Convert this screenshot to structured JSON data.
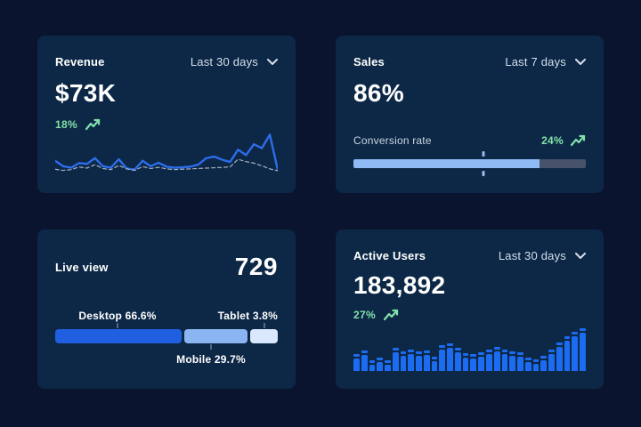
{
  "colors": {
    "page_bg": "#0a142e",
    "card_bg": "#0c2846",
    "text_primary": "#ffffff",
    "text_secondary": "#ccd6e3",
    "accent_green": "#82e0aa",
    "line_blue": "#2d6ceb",
    "line_dashed": "#a7b1c2",
    "bar_blue": "#1c6cf2",
    "progress_fill": "#8fbaf3",
    "progress_track": "#47536b",
    "progress_marker": "#9db9e8",
    "segment_desktop": "#1f5fe0",
    "segment_mobile": "#8ab5f0",
    "segment_tablet": "#d9e8fc",
    "tick": "#52648a"
  },
  "cards": {
    "revenue": {
      "title": "Revenue",
      "period": "Last 30 days",
      "value": "$73K",
      "delta": "18%",
      "trend": "up",
      "chart_data": {
        "type": "line",
        "series": [
          {
            "name": "current",
            "style": "solid",
            "values": [
              32,
              18,
              14,
              26,
              24,
              39,
              18,
              14,
              36,
              12,
              9,
              32,
              18,
              27,
              17,
              14,
              15,
              17,
              22,
              39,
              43,
              35,
              29,
              61,
              47,
              75,
              65,
              100,
              8
            ]
          },
          {
            "name": "previous",
            "style": "dashed",
            "values": [
              10,
              7,
              9,
              16,
              13,
              22,
              12,
              9,
              20,
              11,
              7,
              17,
              12,
              15,
              11,
              9,
              10,
              11,
              12,
              13,
              14,
              15,
              16,
              36,
              30,
              26,
              19,
              11,
              6
            ]
          }
        ],
        "ylim": [
          0,
          100
        ],
        "grid": false,
        "legend": false
      }
    },
    "sales": {
      "title": "Sales",
      "period": "Last 7 days",
      "value": "86%",
      "metric_label": "Conversion rate",
      "delta": "24%",
      "trend": "up",
      "progress": {
        "fill_pct": 80,
        "marker_pct": 56
      }
    },
    "live_view": {
      "title": "Live view",
      "value": "729",
      "chart_data": {
        "type": "stacked-bar",
        "segments": [
          {
            "name": "Desktop",
            "label": "Desktop 66.6%",
            "pct": 66.6,
            "width_pct": 57,
            "color_key": "segment_desktop"
          },
          {
            "name": "Mobile",
            "label": "Mobile 29.7%",
            "pct": 29.7,
            "width_pct": 28.5,
            "color_key": "segment_mobile"
          },
          {
            "name": "Tablet",
            "label": "Tablet 3.8%",
            "pct": 3.8,
            "width_pct": 12.5,
            "color_key": "segment_tablet"
          }
        ],
        "tick_positions_pct": {
          "desktop_top": 28,
          "mobile_bottom": 70,
          "tablet_top": 94
        }
      }
    },
    "active_users": {
      "title": "Active Users",
      "period": "Last 30 days",
      "value": "183,892",
      "delta": "27%",
      "trend": "up",
      "chart_data": {
        "type": "bar",
        "values": [
          40,
          48,
          25,
          31,
          26,
          55,
          46,
          51,
          46,
          48,
          33,
          60,
          64,
          55,
          42,
          40,
          43,
          49,
          56,
          51,
          46,
          44,
          31,
          28,
          36,
          49,
          66,
          81,
          91,
          100
        ],
        "ylim": [
          0,
          100
        ],
        "grid": false
      }
    }
  },
  "icons": {
    "trend_up": "trending-up-arrow",
    "chevron": "chevron-down"
  }
}
